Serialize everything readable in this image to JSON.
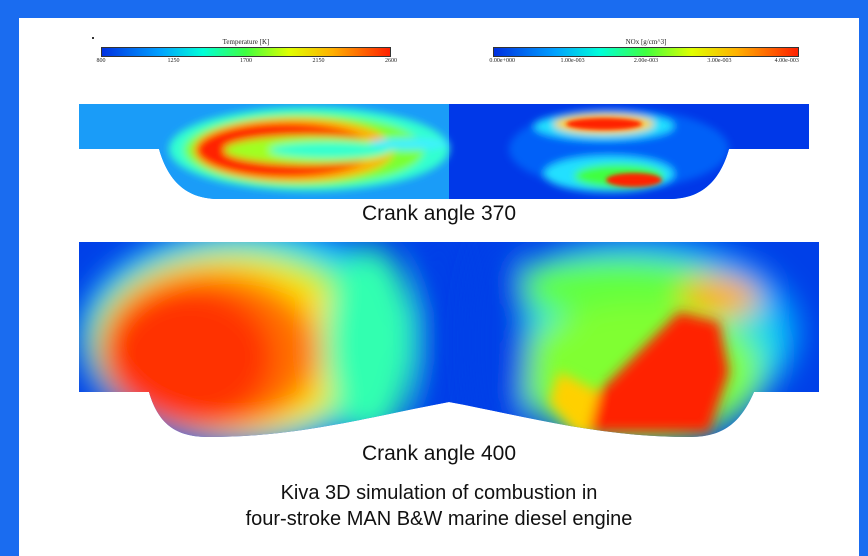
{
  "legend_temperature": {
    "title": "Temperature [K]",
    "ticks": [
      "800",
      "1250",
      "1700",
      "2150",
      "2600"
    ]
  },
  "legend_no": {
    "title": "NOx [g/cm^3]",
    "ticks": [
      "0.00e+000",
      "1.00e-003",
      "2.00e-003",
      "3.00e-003",
      "4.00e-003"
    ]
  },
  "captions": {
    "crank_370": "Crank angle 370",
    "crank_400": "Crank angle 400",
    "main_line1": "Kiva 3D simulation of combustion in",
    "main_line2": "four-stroke MAN B&W marine diesel engine"
  },
  "colors": {
    "frame": "#1a6cf0",
    "cold": "#0030e0",
    "hot": "#ff2000"
  }
}
